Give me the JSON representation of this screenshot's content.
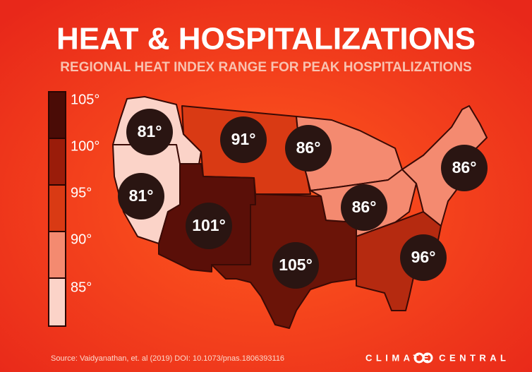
{
  "header": {
    "title": "HEAT & HOSPITALIZATIONS",
    "subtitle": "REGIONAL HEAT INDEX RANGE FOR PEAK HOSPITALIZATIONS"
  },
  "legend": [
    "105°",
    "100°",
    "95°",
    "90°",
    "85°"
  ],
  "regions": [
    {
      "label": "81°"
    },
    {
      "label": "91°"
    },
    {
      "label": "86°"
    },
    {
      "label": "81°"
    },
    {
      "label": "101°"
    },
    {
      "label": "105°"
    },
    {
      "label": "86°"
    },
    {
      "label": "86°"
    },
    {
      "label": "96°"
    }
  ],
  "footer": {
    "source": "Source: Vaidyanathan, et. al (2019) DOI: 10.1073/pnas.1806393116",
    "logo": "CLIMATE CENTRAL"
  }
}
